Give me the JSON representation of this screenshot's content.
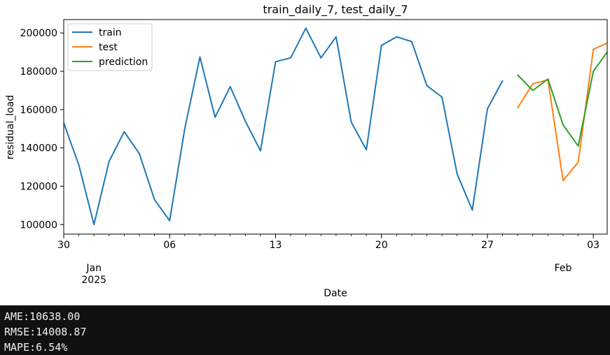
{
  "chart_data": {
    "type": "line",
    "title": "train_daily_7, test_daily_7",
    "xlabel": "Date",
    "ylabel": "residual_load",
    "ylim": [
      95000,
      207000
    ],
    "xlim": [
      "2024-12-30",
      "2025-02-03T22:00"
    ],
    "grid": false,
    "legend_position": "top-left",
    "y_ticks": [
      100000,
      120000,
      140000,
      160000,
      180000,
      200000
    ],
    "x_ticks": [
      {
        "date": "2024-12-30",
        "label": "30"
      },
      {
        "date": "2025-01-06",
        "label": "06"
      },
      {
        "date": "2025-01-13",
        "label": "13"
      },
      {
        "date": "2025-01-20",
        "label": "20"
      },
      {
        "date": "2025-01-27",
        "label": "27"
      },
      {
        "date": "2025-02-03",
        "label": "03"
      }
    ],
    "x_secondary_labels": [
      {
        "date": "2025-01-01",
        "lines": [
          "Jan",
          "2025"
        ]
      },
      {
        "date": "2025-02-01",
        "lines": [
          "Feb"
        ]
      }
    ],
    "series": [
      {
        "name": "train",
        "color": "#1f77b4",
        "points": [
          [
            "2024-12-30",
            153000
          ],
          [
            "2024-12-31",
            131000
          ],
          [
            "2025-01-01",
            100000
          ],
          [
            "2025-01-02",
            133000
          ],
          [
            "2025-01-03",
            148500
          ],
          [
            "2025-01-04",
            137000
          ],
          [
            "2025-01-05",
            113000
          ],
          [
            "2025-01-06",
            102000
          ],
          [
            "2025-01-07",
            150000
          ],
          [
            "2025-01-08",
            187500
          ],
          [
            "2025-01-09",
            156000
          ],
          [
            "2025-01-10",
            172000
          ],
          [
            "2025-01-11",
            154000
          ],
          [
            "2025-01-12",
            138500
          ],
          [
            "2025-01-13",
            185000
          ],
          [
            "2025-01-14",
            187000
          ],
          [
            "2025-01-15",
            202500
          ],
          [
            "2025-01-16",
            187000
          ],
          [
            "2025-01-17",
            198000
          ],
          [
            "2025-01-18",
            153500
          ],
          [
            "2025-01-19",
            139000
          ],
          [
            "2025-01-20",
            193500
          ],
          [
            "2025-01-21",
            198000
          ],
          [
            "2025-01-22",
            195500
          ],
          [
            "2025-01-23",
            172500
          ],
          [
            "2025-01-24",
            166500
          ],
          [
            "2025-01-25",
            126500
          ],
          [
            "2025-01-26",
            107500
          ],
          [
            "2025-01-27",
            160500
          ],
          [
            "2025-01-28",
            175000
          ]
        ]
      },
      {
        "name": "test",
        "color": "#ff7f0e",
        "points": [
          [
            "2025-01-29",
            161000
          ],
          [
            "2025-01-30",
            173500
          ],
          [
            "2025-01-31",
            175500
          ],
          [
            "2025-02-01",
            123000
          ],
          [
            "2025-02-02",
            132500
          ],
          [
            "2025-02-03",
            191500
          ],
          [
            "2025-02-04",
            195000
          ]
        ]
      },
      {
        "name": "prediction",
        "color": "#2ca02c",
        "points": [
          [
            "2025-01-29",
            178000
          ],
          [
            "2025-01-30",
            170000
          ],
          [
            "2025-01-31",
            176000
          ],
          [
            "2025-02-01",
            152000
          ],
          [
            "2025-02-02",
            141000
          ],
          [
            "2025-02-03",
            180000
          ],
          [
            "2025-02-04",
            191000
          ]
        ]
      }
    ]
  },
  "metrics": {
    "ame": "AME:10638.00",
    "rmse": "RMSE:14008.87",
    "mape": "MAPE:6.54%"
  }
}
